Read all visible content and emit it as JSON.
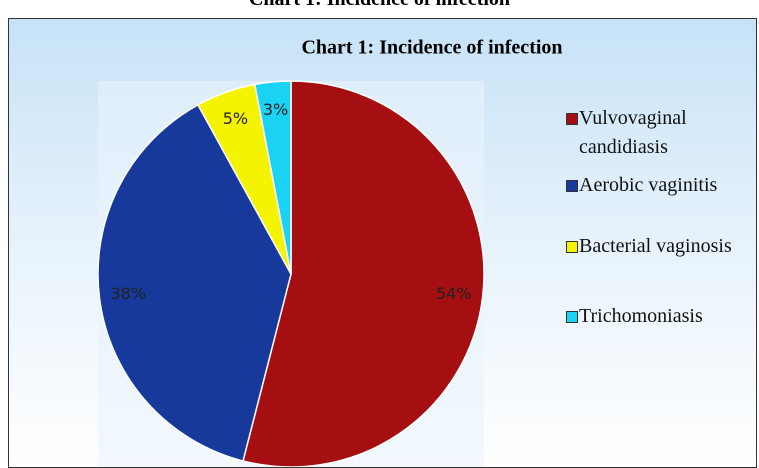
{
  "page_caption": "Chart 1: Incidence of infection",
  "chart_data": {
    "type": "pie",
    "title": "Chart 1: Incidence of infection",
    "categories": [
      "Vulvovaginal candidiasis",
      "Aerobic vaginitis",
      "Bacterial vaginosis",
      "Trichomoniasis"
    ],
    "values": [
      54,
      38,
      5,
      3
    ],
    "value_labels": [
      "54%",
      "38%",
      "5%",
      "3%"
    ],
    "colors": [
      "#a50f12",
      "#17399b",
      "#f4f400",
      "#19d2f4"
    ],
    "legend": "right"
  }
}
